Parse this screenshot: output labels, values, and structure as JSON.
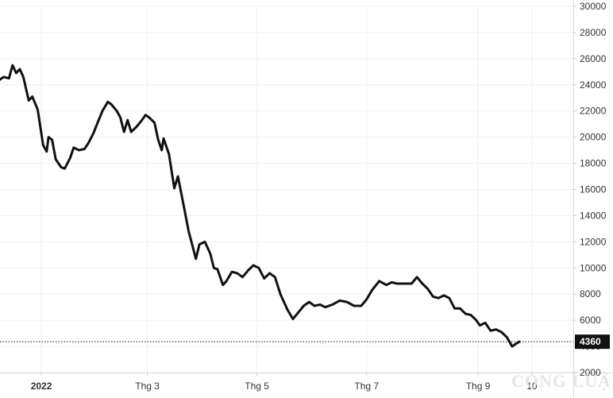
{
  "chart_data": {
    "type": "line",
    "title": "",
    "xlabel": "",
    "ylabel": "",
    "ylim": [
      2000,
      30000
    ],
    "yticks": [
      2000,
      4000,
      6000,
      8000,
      10000,
      12000,
      14000,
      16000,
      18000,
      20000,
      22000,
      24000,
      26000,
      28000,
      30000
    ],
    "xlim": [
      "2021-12-09",
      "2022-10-24"
    ],
    "xticks": [
      {
        "date": "2022-01-01",
        "label": "2022",
        "bold": true
      },
      {
        "date": "2022-03-01",
        "label": "Thg 3",
        "bold": false
      },
      {
        "date": "2022-05-01",
        "label": "Thg 5",
        "bold": false
      },
      {
        "date": "2022-07-01",
        "label": "Thg 7",
        "bold": false
      },
      {
        "date": "2022-09-01",
        "label": "Thg 9",
        "bold": false
      },
      {
        "date": "2022-10-01",
        "label": "10",
        "bold": false
      }
    ],
    "grid": true,
    "legend": "none",
    "series": [
      {
        "color": "#111111",
        "points": [
          [
            "2021-12-09",
            24400
          ],
          [
            "2021-12-11",
            24600
          ],
          [
            "2021-12-14",
            24500
          ],
          [
            "2021-12-16",
            25500
          ],
          [
            "2021-12-18",
            24900
          ],
          [
            "2021-12-20",
            25200
          ],
          [
            "2021-12-22",
            24600
          ],
          [
            "2021-12-25",
            22800
          ],
          [
            "2021-12-27",
            23100
          ],
          [
            "2021-12-30",
            22100
          ],
          [
            "2022-01-02",
            19400
          ],
          [
            "2022-01-04",
            18900
          ],
          [
            "2022-01-05",
            20000
          ],
          [
            "2022-01-07",
            19800
          ],
          [
            "2022-01-09",
            18300
          ],
          [
            "2022-01-12",
            17700
          ],
          [
            "2022-01-14",
            17600
          ],
          [
            "2022-01-17",
            18400
          ],
          [
            "2022-01-19",
            19200
          ],
          [
            "2022-01-22",
            19000
          ],
          [
            "2022-01-25",
            19100
          ],
          [
            "2022-01-27",
            19500
          ],
          [
            "2022-01-30",
            20300
          ],
          [
            "2022-02-01",
            21000
          ],
          [
            "2022-02-04",
            22000
          ],
          [
            "2022-02-07",
            22700
          ],
          [
            "2022-02-09",
            22500
          ],
          [
            "2022-02-12",
            22000
          ],
          [
            "2022-02-14",
            21500
          ],
          [
            "2022-02-16",
            20400
          ],
          [
            "2022-02-18",
            21300
          ],
          [
            "2022-02-20",
            20400
          ],
          [
            "2022-02-23",
            20800
          ],
          [
            "2022-02-26",
            21300
          ],
          [
            "2022-02-28",
            21700
          ],
          [
            "2022-03-02",
            21500
          ],
          [
            "2022-03-05",
            21100
          ],
          [
            "2022-03-07",
            19800
          ],
          [
            "2022-03-09",
            19000
          ],
          [
            "2022-03-10",
            19900
          ],
          [
            "2022-03-13",
            18700
          ],
          [
            "2022-03-16",
            16100
          ],
          [
            "2022-03-18",
            17000
          ],
          [
            "2022-03-21",
            14900
          ],
          [
            "2022-03-24",
            12800
          ],
          [
            "2022-03-28",
            10700
          ],
          [
            "2022-03-30",
            11800
          ],
          [
            "2022-04-02",
            12000
          ],
          [
            "2022-04-05",
            11100
          ],
          [
            "2022-04-07",
            10000
          ],
          [
            "2022-04-09",
            9900
          ],
          [
            "2022-04-12",
            8700
          ],
          [
            "2022-04-14",
            9000
          ],
          [
            "2022-04-17",
            9700
          ],
          [
            "2022-04-20",
            9600
          ],
          [
            "2022-04-23",
            9300
          ],
          [
            "2022-04-26",
            9800
          ],
          [
            "2022-04-29",
            10200
          ],
          [
            "2022-05-02",
            10000
          ],
          [
            "2022-05-05",
            9200
          ],
          [
            "2022-05-08",
            9600
          ],
          [
            "2022-05-11",
            9300
          ],
          [
            "2022-05-14",
            8000
          ],
          [
            "2022-05-18",
            6800
          ],
          [
            "2022-05-21",
            6100
          ],
          [
            "2022-05-24",
            6600
          ],
          [
            "2022-05-27",
            7100
          ],
          [
            "2022-05-30",
            7400
          ],
          [
            "2022-06-02",
            7100
          ],
          [
            "2022-06-05",
            7200
          ],
          [
            "2022-06-08",
            7000
          ],
          [
            "2022-06-12",
            7200
          ],
          [
            "2022-06-16",
            7500
          ],
          [
            "2022-06-20",
            7400
          ],
          [
            "2022-06-24",
            7100
          ],
          [
            "2022-06-28",
            7100
          ],
          [
            "2022-07-01",
            7600
          ],
          [
            "2022-07-04",
            8300
          ],
          [
            "2022-07-08",
            9000
          ],
          [
            "2022-07-12",
            8700
          ],
          [
            "2022-07-15",
            8900
          ],
          [
            "2022-07-18",
            8800
          ],
          [
            "2022-07-22",
            8800
          ],
          [
            "2022-07-26",
            8800
          ],
          [
            "2022-07-29",
            9300
          ],
          [
            "2022-08-01",
            8800
          ],
          [
            "2022-08-04",
            8400
          ],
          [
            "2022-08-07",
            7800
          ],
          [
            "2022-08-10",
            7700
          ],
          [
            "2022-08-13",
            7900
          ],
          [
            "2022-08-16",
            7700
          ],
          [
            "2022-08-19",
            6900
          ],
          [
            "2022-08-22",
            6900
          ],
          [
            "2022-08-25",
            6500
          ],
          [
            "2022-08-28",
            6400
          ],
          [
            "2022-08-31",
            6000
          ],
          [
            "2022-09-02",
            5600
          ],
          [
            "2022-09-05",
            5800
          ],
          [
            "2022-09-08",
            5200
          ],
          [
            "2022-09-11",
            5300
          ],
          [
            "2022-09-14",
            5100
          ],
          [
            "2022-09-17",
            4700
          ],
          [
            "2022-09-20",
            4000
          ],
          [
            "2022-09-22",
            4200
          ],
          [
            "2022-09-24",
            4360
          ]
        ]
      }
    ],
    "last_value": 4360,
    "last_value_label": "4360",
    "last_value_line": "dotted"
  },
  "watermark": {
    "text": "CÔNG LUẬN"
  }
}
